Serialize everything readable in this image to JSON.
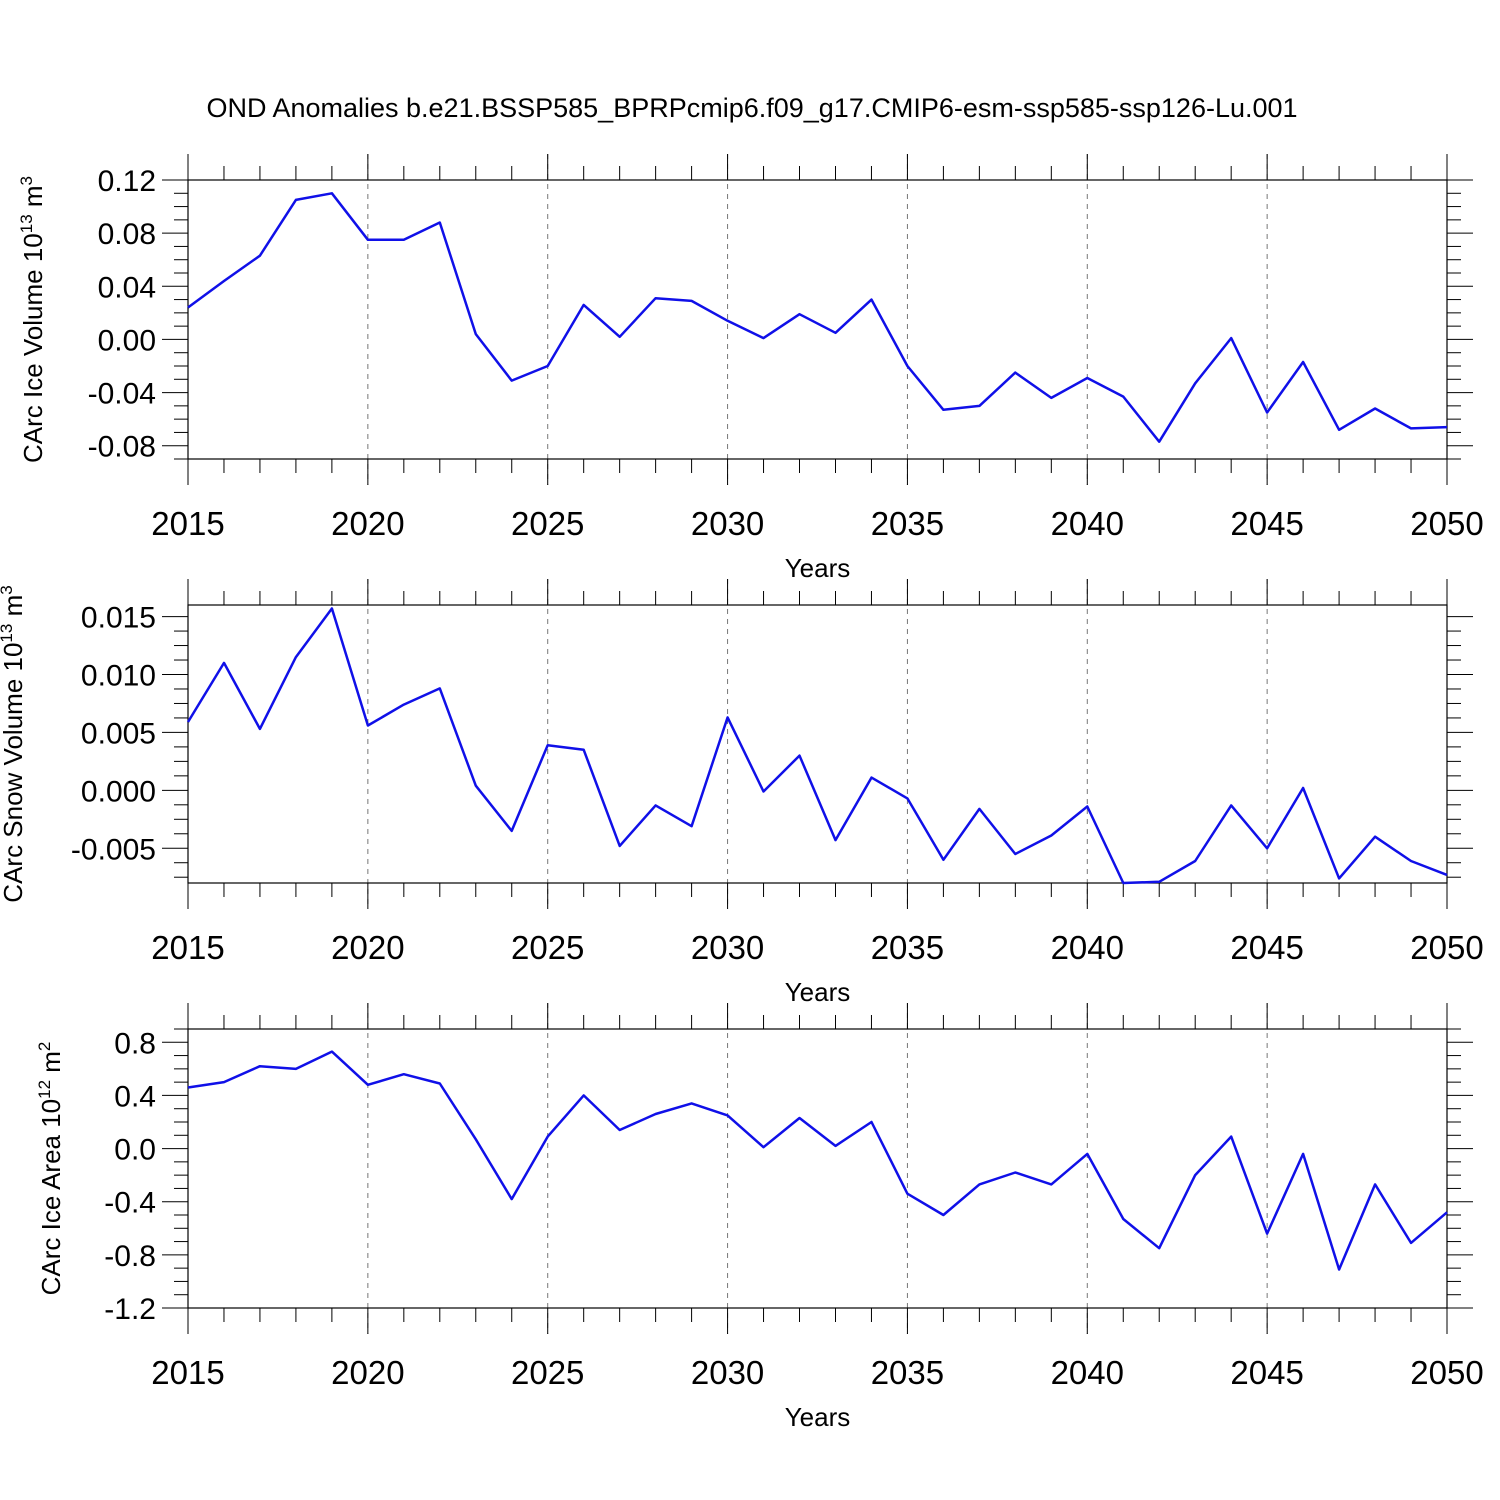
{
  "figure": {
    "title": "OND Anomalies b.e21.BSSP585_BPRPcmip6.f09_g17.CMIP6-esm-ssp585-ssp126-Lu.001",
    "line_color": "#1010e8"
  },
  "chart_data": [
    {
      "type": "line",
      "name": "ice-volume",
      "ylabel_main": "CArc Ice Volume 10",
      "ylabel_exp": "13",
      "ylabel_unit": " m",
      "ylabel_unit_exp": "3",
      "xlabel": "Years",
      "xlim": [
        2015,
        2050
      ],
      "ylim": [
        -0.09,
        0.12
      ],
      "xticks": [
        2015,
        2020,
        2025,
        2030,
        2035,
        2040,
        2045,
        2050
      ],
      "xtick_labels": [
        "2015",
        "2020",
        "2025",
        "2030",
        "2035",
        "2040",
        "2045",
        "2050"
      ],
      "yticks": [
        0.12,
        0.08,
        0.04,
        0.0,
        -0.04,
        -0.08
      ],
      "ytick_labels": [
        "0.12",
        "0.08",
        "0.04",
        "0.00",
        "-0.04",
        "-0.08"
      ],
      "x": [
        2015,
        2016,
        2017,
        2018,
        2019,
        2020,
        2021,
        2022,
        2023,
        2024,
        2025,
        2026,
        2027,
        2028,
        2029,
        2030,
        2031,
        2032,
        2033,
        2034,
        2035,
        2036,
        2037,
        2038,
        2039,
        2040,
        2041,
        2042,
        2043,
        2044,
        2045,
        2046,
        2047,
        2048,
        2049,
        2050
      ],
      "values": [
        0.024,
        0.044,
        0.063,
        0.105,
        0.11,
        0.075,
        0.075,
        0.088,
        0.004,
        -0.031,
        -0.02,
        0.026,
        0.002,
        0.031,
        0.029,
        0.014,
        0.001,
        0.019,
        0.005,
        0.03,
        -0.02,
        -0.053,
        -0.05,
        -0.025,
        -0.044,
        -0.029,
        -0.043,
        -0.077,
        -0.033,
        0.001,
        -0.055,
        -0.017,
        -0.068,
        -0.052,
        -0.067,
        -0.066
      ]
    },
    {
      "type": "line",
      "name": "snow-volume",
      "ylabel_main": "CArc Snow Volume 10",
      "ylabel_exp": "13",
      "ylabel_unit": " m",
      "ylabel_unit_exp": "3",
      "xlabel": "Years",
      "xlim": [
        2015,
        2050
      ],
      "ylim": [
        -0.008,
        0.016
      ],
      "xticks": [
        2015,
        2020,
        2025,
        2030,
        2035,
        2040,
        2045,
        2050
      ],
      "xtick_labels": [
        "2015",
        "2020",
        "2025",
        "2030",
        "2035",
        "2040",
        "2045",
        "2050"
      ],
      "yticks": [
        0.015,
        0.01,
        0.005,
        0.0,
        -0.005
      ],
      "ytick_labels": [
        "0.015",
        "0.010",
        "0.005",
        "0.000",
        "-0.005"
      ],
      "x": [
        2015,
        2016,
        2017,
        2018,
        2019,
        2020,
        2021,
        2022,
        2023,
        2024,
        2025,
        2026,
        2027,
        2028,
        2029,
        2030,
        2031,
        2032,
        2033,
        2034,
        2035,
        2036,
        2037,
        2038,
        2039,
        2040,
        2041,
        2042,
        2043,
        2044,
        2045,
        2046,
        2047,
        2048,
        2049,
        2050
      ],
      "values": [
        0.0059,
        0.011,
        0.0053,
        0.0115,
        0.0157,
        0.0056,
        0.0074,
        0.0088,
        0.0004,
        -0.0035,
        0.0039,
        0.0035,
        -0.0048,
        -0.0013,
        -0.0031,
        0.0063,
        -0.0001,
        0.003,
        -0.0043,
        0.0011,
        -0.0007,
        -0.006,
        -0.0016,
        -0.0055,
        -0.0039,
        -0.0014,
        -0.008,
        -0.0079,
        -0.0061,
        -0.0013,
        -0.005,
        0.0002,
        -0.0076,
        -0.004,
        -0.0061,
        -0.0073
      ]
    },
    {
      "type": "line",
      "name": "ice-area",
      "ylabel_main": "CArc Ice Area 10",
      "ylabel_exp": "12",
      "ylabel_unit": " m",
      "ylabel_unit_exp": "2",
      "xlabel": "Years",
      "xlim": [
        2015,
        2050
      ],
      "ylim": [
        -1.2,
        0.9
      ],
      "xticks": [
        2015,
        2020,
        2025,
        2030,
        2035,
        2040,
        2045,
        2050
      ],
      "xtick_labels": [
        "2015",
        "2020",
        "2025",
        "2030",
        "2035",
        "2040",
        "2045",
        "2050"
      ],
      "yticks": [
        0.8,
        0.4,
        0.0,
        -0.4,
        -0.8,
        -1.2
      ],
      "ytick_labels": [
        "0.8",
        "0.4",
        "0.0",
        "-0.4",
        "-0.8",
        "-1.2"
      ],
      "x": [
        2015,
        2016,
        2017,
        2018,
        2019,
        2020,
        2021,
        2022,
        2023,
        2024,
        2025,
        2026,
        2027,
        2028,
        2029,
        2030,
        2031,
        2032,
        2033,
        2034,
        2035,
        2036,
        2037,
        2038,
        2039,
        2040,
        2041,
        2042,
        2043,
        2044,
        2045,
        2046,
        2047,
        2048,
        2049,
        2050
      ],
      "values": [
        0.46,
        0.5,
        0.62,
        0.6,
        0.73,
        0.48,
        0.56,
        0.49,
        0.07,
        -0.38,
        0.09,
        0.4,
        0.14,
        0.26,
        0.34,
        0.25,
        0.01,
        0.23,
        0.02,
        0.2,
        -0.34,
        -0.5,
        -0.27,
        -0.18,
        -0.27,
        -0.04,
        -0.53,
        -0.75,
        -0.2,
        0.09,
        -0.64,
        -0.04,
        -0.91,
        -0.27,
        -0.71,
        -0.48
      ]
    }
  ]
}
